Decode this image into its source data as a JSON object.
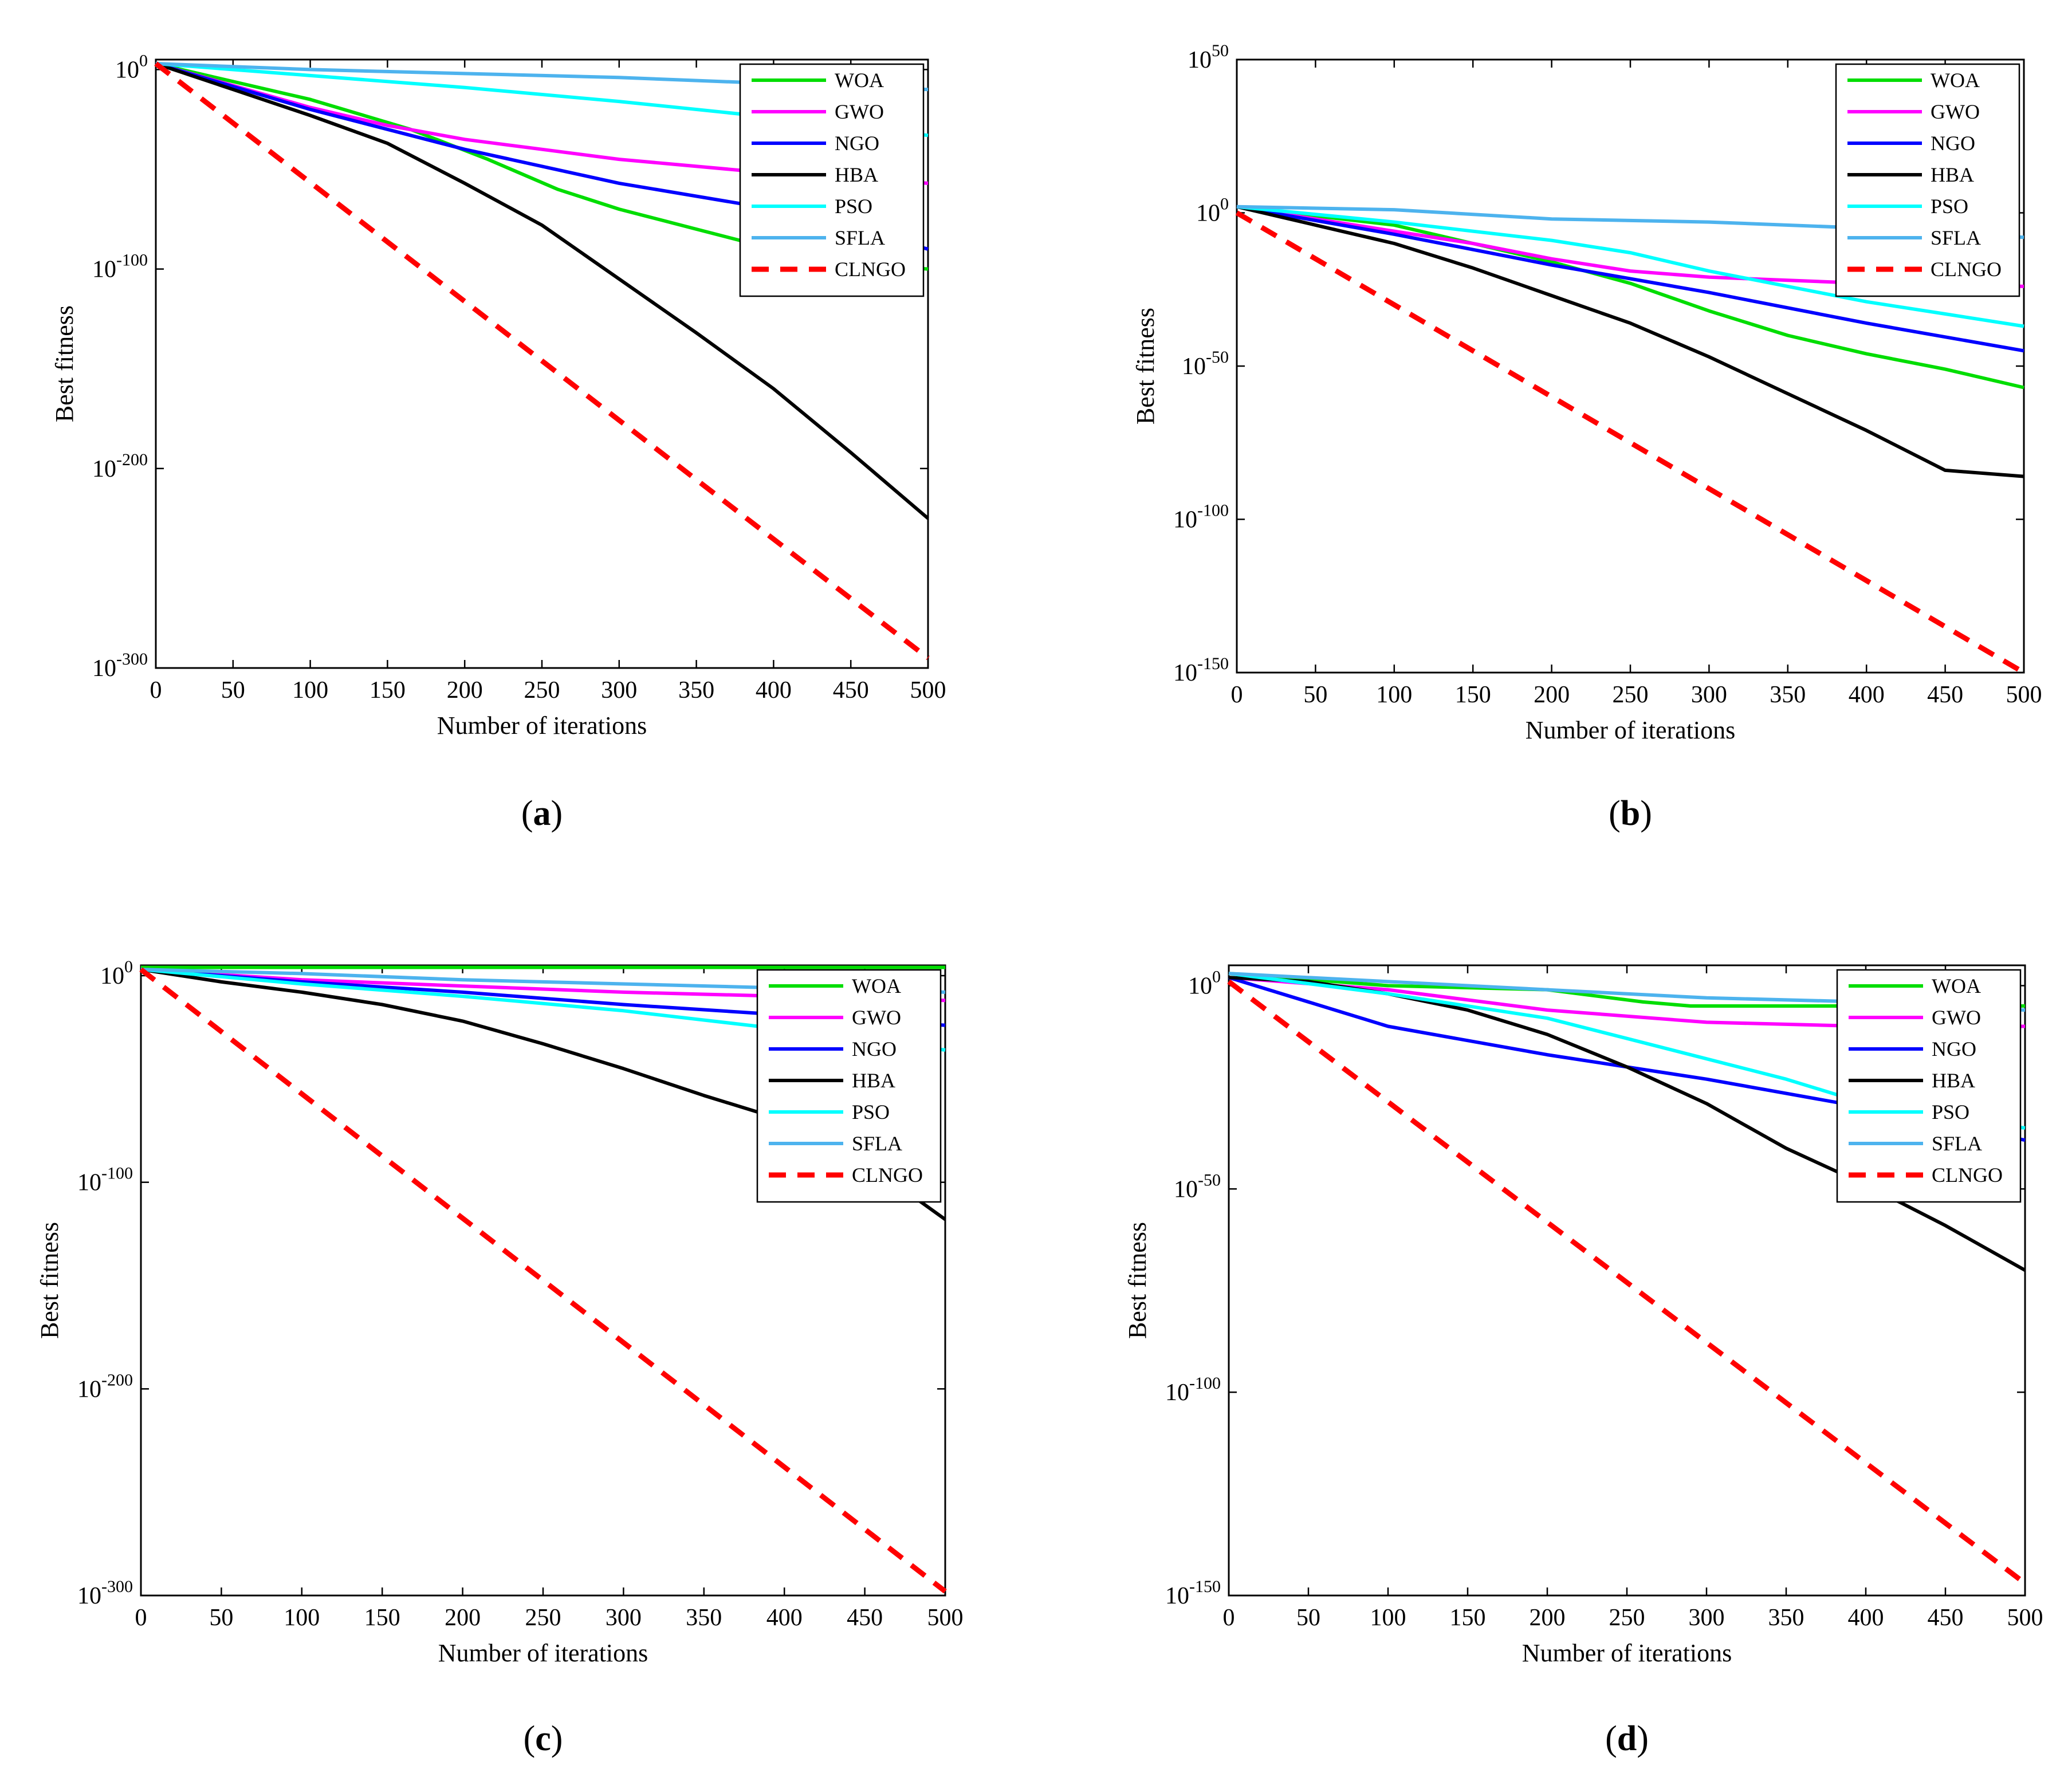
{
  "figure": {
    "panels": [
      "a",
      "b",
      "c",
      "d"
    ]
  },
  "chart_data": [
    {
      "id": "a",
      "type": "line",
      "panel_label": "a",
      "xlabel": "Number of iterations",
      "ylabel": "Best fitness",
      "xlim": [
        0,
        500
      ],
      "ylim": [
        -300,
        5
      ],
      "xticks": [
        0,
        50,
        100,
        150,
        200,
        250,
        300,
        350,
        400,
        450,
        500
      ],
      "yticks": [
        {
          "exp": 0,
          "base": "10",
          "sup": "0"
        },
        {
          "exp": -100,
          "base": "10",
          "sup": "-100"
        },
        {
          "exp": -200,
          "base": "10",
          "sup": "-200"
        },
        {
          "exp": -300,
          "base": "10",
          "sup": "-300"
        }
      ],
      "legend_position": "top-right",
      "series": [
        {
          "name": "WOA",
          "color": "#00dd00",
          "dash": false,
          "x": [
            0,
            100,
            165,
            215,
            260,
            300,
            350,
            400,
            450,
            500
          ],
          "y": [
            3,
            -15,
            -30,
            -45,
            -60,
            -70,
            -80,
            -90,
            -97,
            -100
          ]
        },
        {
          "name": "GWO",
          "color": "#ff00ff",
          "dash": false,
          "x": [
            0,
            100,
            150,
            200,
            250,
            300,
            400,
            500
          ],
          "y": [
            3,
            -19,
            -28,
            -35,
            -40,
            -45,
            -52,
            -57
          ]
        },
        {
          "name": "NGO",
          "color": "#0000ff",
          "dash": false,
          "x": [
            0,
            100,
            200,
            300,
            400,
            500
          ],
          "y": [
            3,
            -20,
            -40,
            -57,
            -70,
            -90
          ]
        },
        {
          "name": "HBA",
          "color": "#000000",
          "dash": false,
          "x": [
            0,
            50,
            100,
            150,
            200,
            250,
            300,
            350,
            400,
            450,
            500
          ],
          "y": [
            3,
            -10,
            -23,
            -37,
            -57,
            -78,
            -105,
            -132,
            -160,
            -192,
            -225
          ]
        },
        {
          "name": "PSO",
          "color": "#00ffff",
          "dash": false,
          "x": [
            0,
            100,
            200,
            300,
            400,
            500
          ],
          "y": [
            3,
            -3,
            -9,
            -16,
            -24,
            -33
          ]
        },
        {
          "name": "SFLA",
          "color": "#4db3ee",
          "dash": false,
          "x": [
            0,
            100,
            200,
            300,
            400,
            500
          ],
          "y": [
            3,
            0,
            -2,
            -4,
            -7,
            -10
          ]
        },
        {
          "name": "CLNGO",
          "color": "#ff0000",
          "dash": true,
          "x": [
            0,
            500
          ],
          "y": [
            3,
            -295
          ]
        }
      ]
    },
    {
      "id": "b",
      "type": "line",
      "panel_label": "b",
      "xlabel": "Number of iterations",
      "ylabel": "Best fitness",
      "xlim": [
        0,
        500
      ],
      "ylim": [
        -150,
        50
      ],
      "xticks": [
        0,
        50,
        100,
        150,
        200,
        250,
        300,
        350,
        400,
        450,
        500
      ],
      "yticks": [
        {
          "exp": 50,
          "base": "10",
          "sup": "50"
        },
        {
          "exp": 0,
          "base": "10",
          "sup": "0"
        },
        {
          "exp": -50,
          "base": "10",
          "sup": "-50"
        },
        {
          "exp": -100,
          "base": "10",
          "sup": "-100"
        },
        {
          "exp": -150,
          "base": "10",
          "sup": "-150"
        }
      ],
      "legend_position": "top-right",
      "series": [
        {
          "name": "WOA",
          "color": "#00dd00",
          "dash": false,
          "x": [
            0,
            100,
            150,
            200,
            250,
            300,
            350,
            400,
            450,
            500
          ],
          "y": [
            2,
            -4,
            -10,
            -16,
            -23,
            -32,
            -40,
            -46,
            -51,
            -57
          ]
        },
        {
          "name": "GWO",
          "color": "#ff00ff",
          "dash": false,
          "x": [
            0,
            50,
            100,
            150,
            200,
            250,
            300,
            400,
            500
          ],
          "y": [
            2,
            -2,
            -6,
            -10,
            -15,
            -19,
            -21,
            -23,
            -24
          ]
        },
        {
          "name": "NGO",
          "color": "#0000ff",
          "dash": false,
          "x": [
            0,
            100,
            200,
            300,
            400,
            500
          ],
          "y": [
            2,
            -7,
            -17,
            -26,
            -36,
            -45
          ]
        },
        {
          "name": "HBA",
          "color": "#000000",
          "dash": false,
          "x": [
            0,
            50,
            100,
            150,
            200,
            250,
            300,
            350,
            400,
            450,
            500
          ],
          "y": [
            2,
            -4,
            -10,
            -18,
            -27,
            -36,
            -47,
            -59,
            -71,
            -84,
            -86
          ]
        },
        {
          "name": "PSO",
          "color": "#00ffff",
          "dash": false,
          "x": [
            0,
            100,
            200,
            250,
            300,
            350,
            400,
            450,
            500
          ],
          "y": [
            2,
            -3,
            -9,
            -13,
            -19,
            -24,
            -29,
            -33,
            -37
          ]
        },
        {
          "name": "SFLA",
          "color": "#4db3ee",
          "dash": false,
          "x": [
            0,
            100,
            200,
            300,
            400,
            500
          ],
          "y": [
            2,
            1,
            -2,
            -3,
            -5,
            -8
          ]
        },
        {
          "name": "CLNGO",
          "color": "#ff0000",
          "dash": true,
          "x": [
            0,
            500
          ],
          "y": [
            0,
            -150
          ]
        }
      ]
    },
    {
      "id": "c",
      "type": "line",
      "panel_label": "c",
      "xlabel": "Number of iterations",
      "ylabel": "Best fitness",
      "xlim": [
        0,
        500
      ],
      "ylim": [
        -300,
        5
      ],
      "xticks": [
        0,
        50,
        100,
        150,
        200,
        250,
        300,
        350,
        400,
        450,
        500
      ],
      "yticks": [
        {
          "exp": 0,
          "base": "10",
          "sup": "0"
        },
        {
          "exp": -100,
          "base": "10",
          "sup": "-100"
        },
        {
          "exp": -200,
          "base": "10",
          "sup": "-200"
        },
        {
          "exp": -300,
          "base": "10",
          "sup": "-300"
        }
      ],
      "legend_position": "top-right",
      "series": [
        {
          "name": "WOA",
          "color": "#00dd00",
          "dash": false,
          "x": [
            0,
            250,
            500
          ],
          "y": [
            4,
            4,
            4
          ]
        },
        {
          "name": "GWO",
          "color": "#ff00ff",
          "dash": false,
          "x": [
            0,
            100,
            200,
            300,
            400,
            500
          ],
          "y": [
            3,
            -2,
            -5,
            -8,
            -10,
            -12
          ]
        },
        {
          "name": "NGO",
          "color": "#0000ff",
          "dash": false,
          "x": [
            0,
            100,
            200,
            300,
            400,
            500
          ],
          "y": [
            3,
            -3,
            -8,
            -14,
            -19,
            -24
          ]
        },
        {
          "name": "HBA",
          "color": "#000000",
          "dash": false,
          "x": [
            0,
            50,
            100,
            150,
            200,
            250,
            300,
            350,
            400,
            450,
            500
          ],
          "y": [
            3,
            -3,
            -8,
            -14,
            -22,
            -33,
            -45,
            -58,
            -70,
            -90,
            -118
          ]
        },
        {
          "name": "PSO",
          "color": "#00ffff",
          "dash": false,
          "x": [
            0,
            100,
            200,
            300,
            400,
            500
          ],
          "y": [
            3,
            -4,
            -10,
            -17,
            -26,
            -36
          ]
        },
        {
          "name": "SFLA",
          "color": "#4db3ee",
          "dash": false,
          "x": [
            0,
            100,
            200,
            300,
            400,
            500
          ],
          "y": [
            3,
            1,
            -2,
            -4,
            -6,
            -8
          ]
        },
        {
          "name": "CLNGO",
          "color": "#ff0000",
          "dash": true,
          "x": [
            0,
            500
          ],
          "y": [
            3,
            -298
          ]
        }
      ]
    },
    {
      "id": "d",
      "type": "line",
      "panel_label": "d",
      "xlabel": "Number of iterations",
      "ylabel": "Best fitness",
      "xlim": [
        0,
        500
      ],
      "ylim": [
        -150,
        5
      ],
      "xticks": [
        0,
        50,
        100,
        150,
        200,
        250,
        300,
        350,
        400,
        450,
        500
      ],
      "yticks": [
        {
          "exp": 0,
          "base": "10",
          "sup": "0"
        },
        {
          "exp": -50,
          "base": "10",
          "sup": "-50"
        },
        {
          "exp": -100,
          "base": "10",
          "sup": "-100"
        },
        {
          "exp": -150,
          "base": "10",
          "sup": "-150"
        }
      ],
      "legend_position": "top-right",
      "series": [
        {
          "name": "WOA",
          "color": "#00dd00",
          "dash": false,
          "x": [
            0,
            100,
            200,
            240,
            260,
            290,
            400,
            500
          ],
          "y": [
            3,
            0,
            -1,
            -3,
            -4,
            -5,
            -5,
            -5
          ]
        },
        {
          "name": "GWO",
          "color": "#ff00ff",
          "dash": false,
          "x": [
            0,
            100,
            200,
            300,
            400,
            500
          ],
          "y": [
            2,
            -1,
            -6,
            -9,
            -10,
            -10
          ]
        },
        {
          "name": "NGO",
          "color": "#0000ff",
          "dash": false,
          "x": [
            0,
            100,
            200,
            300,
            400,
            500
          ],
          "y": [
            2,
            -10,
            -17,
            -23,
            -30,
            -38
          ]
        },
        {
          "name": "HBA",
          "color": "#000000",
          "dash": false,
          "x": [
            0,
            50,
            100,
            150,
            200,
            250,
            300,
            350,
            400,
            450,
            500
          ],
          "y": [
            2,
            1,
            -2,
            -6,
            -12,
            -20,
            -29,
            -40,
            -49,
            -59,
            -70
          ]
        },
        {
          "name": "PSO",
          "color": "#00ffff",
          "dash": false,
          "x": [
            0,
            100,
            200,
            250,
            300,
            350,
            400,
            450,
            500
          ],
          "y": [
            3,
            -2,
            -8,
            -13,
            -18,
            -23,
            -29,
            -33,
            -35
          ]
        },
        {
          "name": "SFLA",
          "color": "#4db3ee",
          "dash": false,
          "x": [
            0,
            100,
            200,
            300,
            400,
            500
          ],
          "y": [
            3,
            1,
            -1,
            -3,
            -4,
            -6
          ]
        },
        {
          "name": "CLNGO",
          "color": "#ff0000",
          "dash": true,
          "x": [
            0,
            500
          ],
          "y": [
            1,
            -147
          ]
        }
      ]
    }
  ]
}
